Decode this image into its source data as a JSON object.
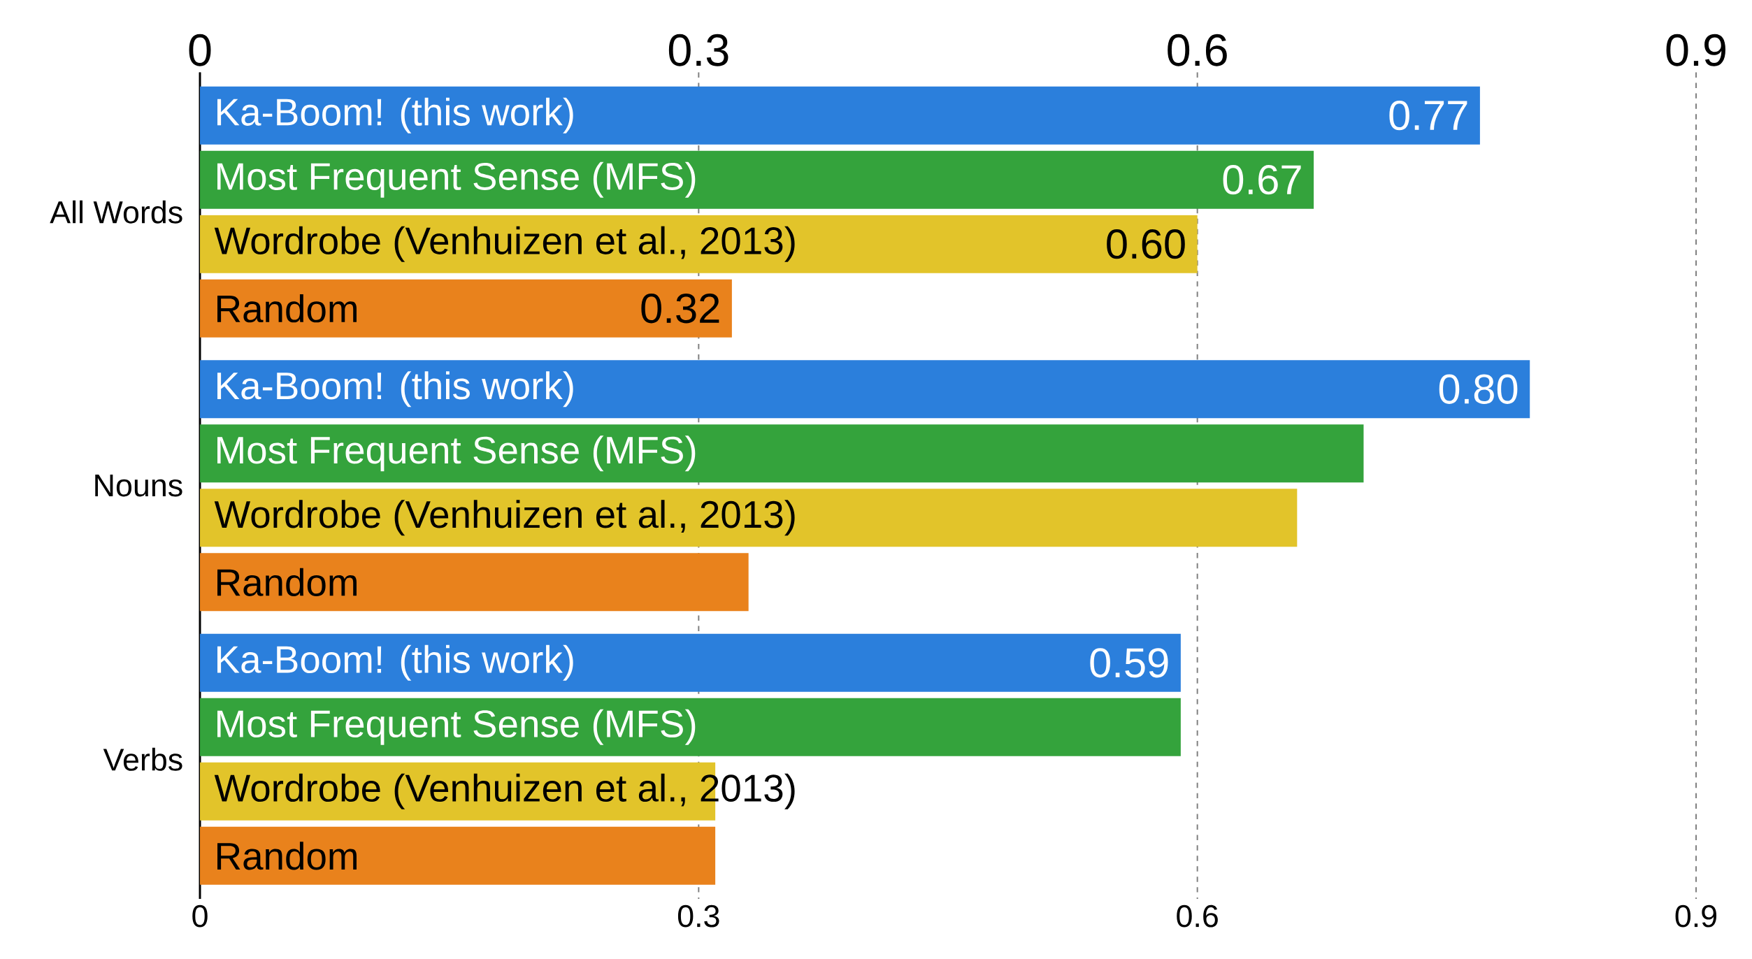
{
  "chart_data": {
    "type": "bar",
    "orientation": "horizontal",
    "categories": [
      "All Words",
      "Nouns",
      "Verbs"
    ],
    "series": [
      {
        "name": "Ka-Boom! (this work)",
        "color": "#2b7fdc",
        "values": [
          0.77,
          0.8,
          0.59
        ],
        "value_labels": [
          "0.77",
          "0.80",
          "0.59"
        ]
      },
      {
        "name": "Most Frequent Sense (MFS)",
        "color": "#34a33c",
        "values": [
          0.67,
          0.7,
          0.59
        ],
        "value_labels": [
          "0.67",
          null,
          null
        ]
      },
      {
        "name": "Wordrobe (Venhuizen et al., 2013)",
        "color": "#e2c42a",
        "values": [
          0.6,
          0.66,
          0.31
        ],
        "value_labels": [
          "0.60",
          null,
          null
        ]
      },
      {
        "name": "Random",
        "color": "#e9821c",
        "values": [
          0.32,
          0.33,
          0.31
        ],
        "value_labels": [
          "0.32",
          null,
          null
        ]
      }
    ],
    "xlim": [
      0,
      0.9
    ],
    "xticks": [
      0,
      0.3,
      0.6,
      0.9
    ],
    "x2lim": [
      0,
      0.9
    ],
    "x2ticks": [
      0,
      0.3,
      0.6,
      0.9
    ],
    "grid": "x"
  }
}
